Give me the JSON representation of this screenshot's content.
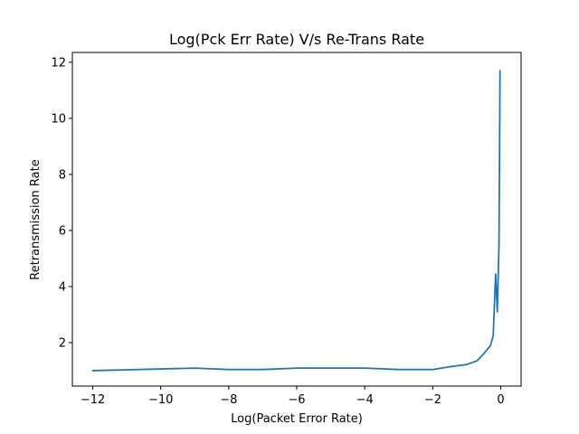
{
  "chart_data": {
    "type": "line",
    "title": "Log(Pck Err Rate) V/s Re-Trans Rate",
    "xlabel": "Log(Packet Error Rate)",
    "ylabel": "Retransmission Rate",
    "xlim": [
      -12.6,
      0.6
    ],
    "ylim": [
      0.45,
      12.35
    ],
    "xticks": [
      -12,
      -10,
      -8,
      -6,
      -4,
      -2,
      0
    ],
    "xtick_labels": [
      "−12",
      "−10",
      "−8",
      "−6",
      "−4",
      "−2",
      "0"
    ],
    "yticks": [
      2,
      4,
      6,
      8,
      10,
      12
    ],
    "ytick_labels": [
      "2",
      "4",
      "6",
      "8",
      "10",
      "12"
    ],
    "grid": false,
    "series": [
      {
        "color": "#1f77b4",
        "x": [
          -12,
          -11,
          -10,
          -9,
          -8,
          -7,
          -6,
          -5,
          -4,
          -3,
          -2,
          -1.5,
          -1,
          -0.7,
          -0.5,
          -0.3,
          -0.22,
          -0.15,
          -0.1,
          -0.05,
          -0.02
        ],
        "y": [
          1.0,
          1.03,
          1.06,
          1.09,
          1.04,
          1.04,
          1.09,
          1.09,
          1.09,
          1.04,
          1.04,
          1.14,
          1.22,
          1.35,
          1.6,
          1.9,
          2.25,
          4.45,
          3.1,
          5.5,
          11.7
        ]
      }
    ]
  }
}
